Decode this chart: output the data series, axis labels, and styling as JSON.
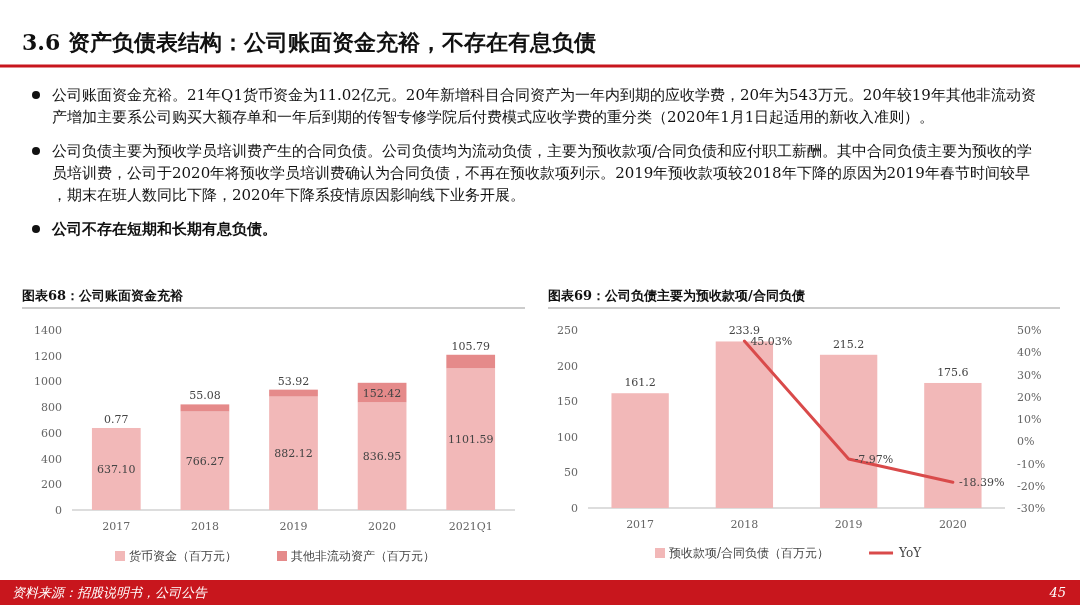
{
  "chart_data": [
    {
      "type": "other",
      "title": "3.6 资产负债表结构：公司账面资金充裕，不存在有息负债",
      "annotations": [
        "公司账面资金充裕。21年Q1货币资金为11.02亿元。20年新增科目合同资产为一年内到期的应收学费，20年为543万元。20年较19年其他非流动资产增加主要系公司购买大额存单和一年后到期的传智专修学院后付费模式应收学费的重分类（2020年1月1日起适用的新收入准则）。",
        "公司负债主要为预收学员培训费产生的合同负债。公司负债均为流动负债，主要为预收款项/合同负债和应付职工薪酬。其中合同负债主要为预收的学员培训费，公司于2020年将预收学员培训费确认为合同负债，不再在预收款项列示。2019年预收款项较2018年下降的原因为2019年春节时间较早，期末在班人数同比下降，2020年下降系疫情原因影响线下业务开展。",
        "公司不存在短期和长期有息负债。",
        "资料来源：招股说明书，公司公告",
        "45"
      ]
    },
    {
      "type": "bar",
      "title": "图表68：公司账面资金充裕",
      "stacked": true,
      "legend": "bottom",
      "categories": [
        "2017",
        "2018",
        "2019",
        "2020",
        "2021Q1"
      ],
      "ylim": [
        0,
        1400
      ],
      "yticks": [
        0,
        200,
        400,
        600,
        800,
        1000,
        1200,
        1400
      ],
      "series": [
        {
          "name": "货币资金（百万元）",
          "color": "#f2b8b8",
          "values": [
            637.1,
            766.27,
            882.12,
            836.95,
            1101.59
          ],
          "value_labels": [
            "637.10",
            "766.27",
            "882.12",
            "836.95",
            "1101.59"
          ]
        },
        {
          "name": "其他非流动资产（百万元）",
          "color": "#e58a8a",
          "values": [
            0.77,
            55.08,
            53.92,
            152.42,
            105.79
          ],
          "value_labels": [
            "0.77",
            "55.08",
            "53.92",
            "152.42",
            "105.79"
          ]
        }
      ]
    },
    {
      "type": "bar",
      "title": "图表69：公司负债主要为预收款项/合同负债",
      "legend": "bottom",
      "categories": [
        "2017",
        "2018",
        "2019",
        "2020"
      ],
      "ylim": [
        0,
        250
      ],
      "yticks": [
        0,
        50,
        100,
        150,
        200,
        250
      ],
      "y2lim": [
        -30,
        50
      ],
      "y2ticks": [
        {
          "value": -30,
          "label": "-30%"
        },
        {
          "value": -20,
          "label": "-20%"
        },
        {
          "value": -10,
          "label": "-10%"
        },
        {
          "value": 0,
          "label": "0%"
        },
        {
          "value": 10,
          "label": "10%"
        },
        {
          "value": 20,
          "label": "20%"
        },
        {
          "value": 30,
          "label": "30%"
        },
        {
          "value": 40,
          "label": "40%"
        },
        {
          "value": 50,
          "label": "50%"
        }
      ],
      "series": [
        {
          "name": "预收款项/合同负债（百万元）",
          "color": "#f2b8b8",
          "values": [
            161.2,
            233.9,
            215.2,
            175.6
          ],
          "value_labels": [
            "161.2",
            "233.9",
            "215.2",
            "175.6"
          ]
        },
        {
          "name": "YoY",
          "type": "line",
          "axis": "y2",
          "color": "#d94a4a",
          "values": [
            null,
            45.03,
            -7.97,
            -18.39
          ],
          "value_labels": [
            null,
            "45.03%",
            "-7.97%",
            "-18.39%"
          ]
        }
      ]
    }
  ]
}
